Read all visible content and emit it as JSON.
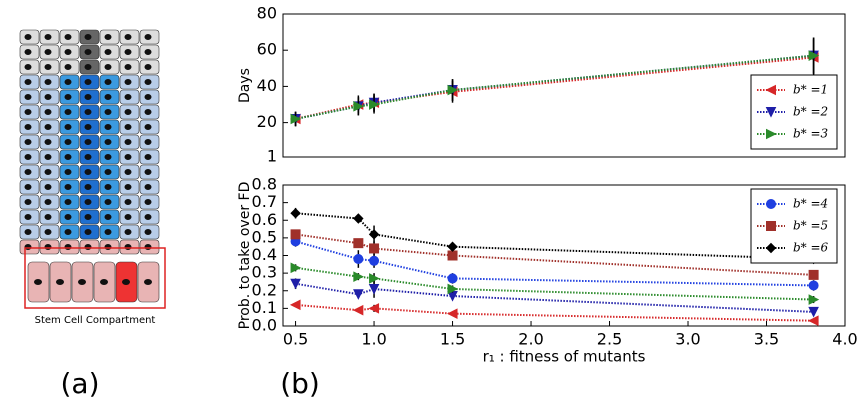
{
  "panel_a": {
    "caption": "Stem Cell Compartment",
    "label": "(a)"
  },
  "panel_b_label": "(b)",
  "chart_data": [
    {
      "type": "line",
      "ylabel": "Days",
      "xlim": [
        0.42,
        4.0
      ],
      "ylim": [
        1,
        80
      ],
      "yticks": [
        1,
        20,
        40,
        60,
        80
      ],
      "legend": "lower right",
      "x": [
        0.5,
        0.9,
        1.0,
        1.5,
        3.8
      ],
      "series": [
        {
          "name": "b* =1",
          "color": "#d62728",
          "marker": "triangle-left",
          "values": [
            22,
            30,
            31,
            37,
            56
          ],
          "errors": [
            4,
            5,
            5,
            6,
            10
          ]
        },
        {
          "name": "b* =2",
          "color": "#1f1fa8",
          "marker": "triangle-down",
          "values": [
            22,
            29,
            31,
            38,
            57
          ],
          "errors": [
            4,
            5,
            5,
            6,
            10
          ]
        },
        {
          "name": "b* =3",
          "color": "#2a8a2a",
          "marker": "triangle-right",
          "values": [
            22,
            29,
            30,
            38,
            57
          ],
          "errors": [
            4,
            5,
            5,
            6,
            10
          ]
        }
      ]
    },
    {
      "type": "line",
      "ylabel": "Prob. to take over FD",
      "xlabel": "r₁ : fitness of mutants",
      "xlim": [
        0.42,
        4.0
      ],
      "xticks": [
        0.5,
        {
          "value": 1,
          "label": "1.0"
        },
        1.5,
        {
          "value": 2,
          "label": "2.0"
        },
        2.5,
        {
          "value": 3,
          "label": "3.0"
        },
        3.5,
        {
          "value": 4,
          "label": "4.0"
        }
      ],
      "ylim": [
        0,
        0.8
      ],
      "yticks": [
        {
          "value": 0,
          "label": "0.0"
        },
        0.1,
        0.2,
        0.3,
        0.4,
        0.5,
        0.6,
        0.7,
        0.8
      ],
      "legend": "upper right",
      "x": [
        0.5,
        0.9,
        1.0,
        1.5,
        3.8
      ],
      "series": [
        {
          "color": "#d62728",
          "marker": "triangle-left",
          "values": [
            0.12,
            0.09,
            0.1,
            0.07,
            0.03
          ],
          "errors": [
            0.01,
            0.01,
            0.02,
            0.01,
            0.01
          ]
        },
        {
          "color": "#1f1fa8",
          "marker": "triangle-down",
          "values": [
            0.24,
            0.18,
            0.21,
            0.17,
            0.08
          ],
          "errors": [
            0.03,
            0.02,
            0.05,
            0.02,
            0.01
          ]
        },
        {
          "color": "#2a8a2a",
          "marker": "triangle-right",
          "values": [
            0.33,
            0.28,
            0.27,
            0.21,
            0.15
          ],
          "errors": [
            0.02,
            0.02,
            0.03,
            0.02,
            0.02
          ]
        },
        {
          "name": "b* =4",
          "color": "#1f3fe0",
          "marker": "circle",
          "values": [
            0.48,
            0.38,
            0.37,
            0.27,
            0.23
          ],
          "errors": [
            0.03,
            0.05,
            0.04,
            0.03,
            0.03
          ]
        },
        {
          "name": "b* =5",
          "color": "#a0302a",
          "marker": "square",
          "values": [
            0.52,
            0.47,
            0.44,
            0.4,
            0.29
          ],
          "errors": [
            0.02,
            0.02,
            0.04,
            0.02,
            0.02
          ]
        },
        {
          "name": "b* =6",
          "color": "#000000",
          "marker": "diamond",
          "values": [
            0.64,
            0.61,
            0.52,
            0.45,
            0.38
          ],
          "errors": [
            0.03,
            0.02,
            0.05,
            0.01,
            0.01
          ]
        }
      ]
    }
  ]
}
